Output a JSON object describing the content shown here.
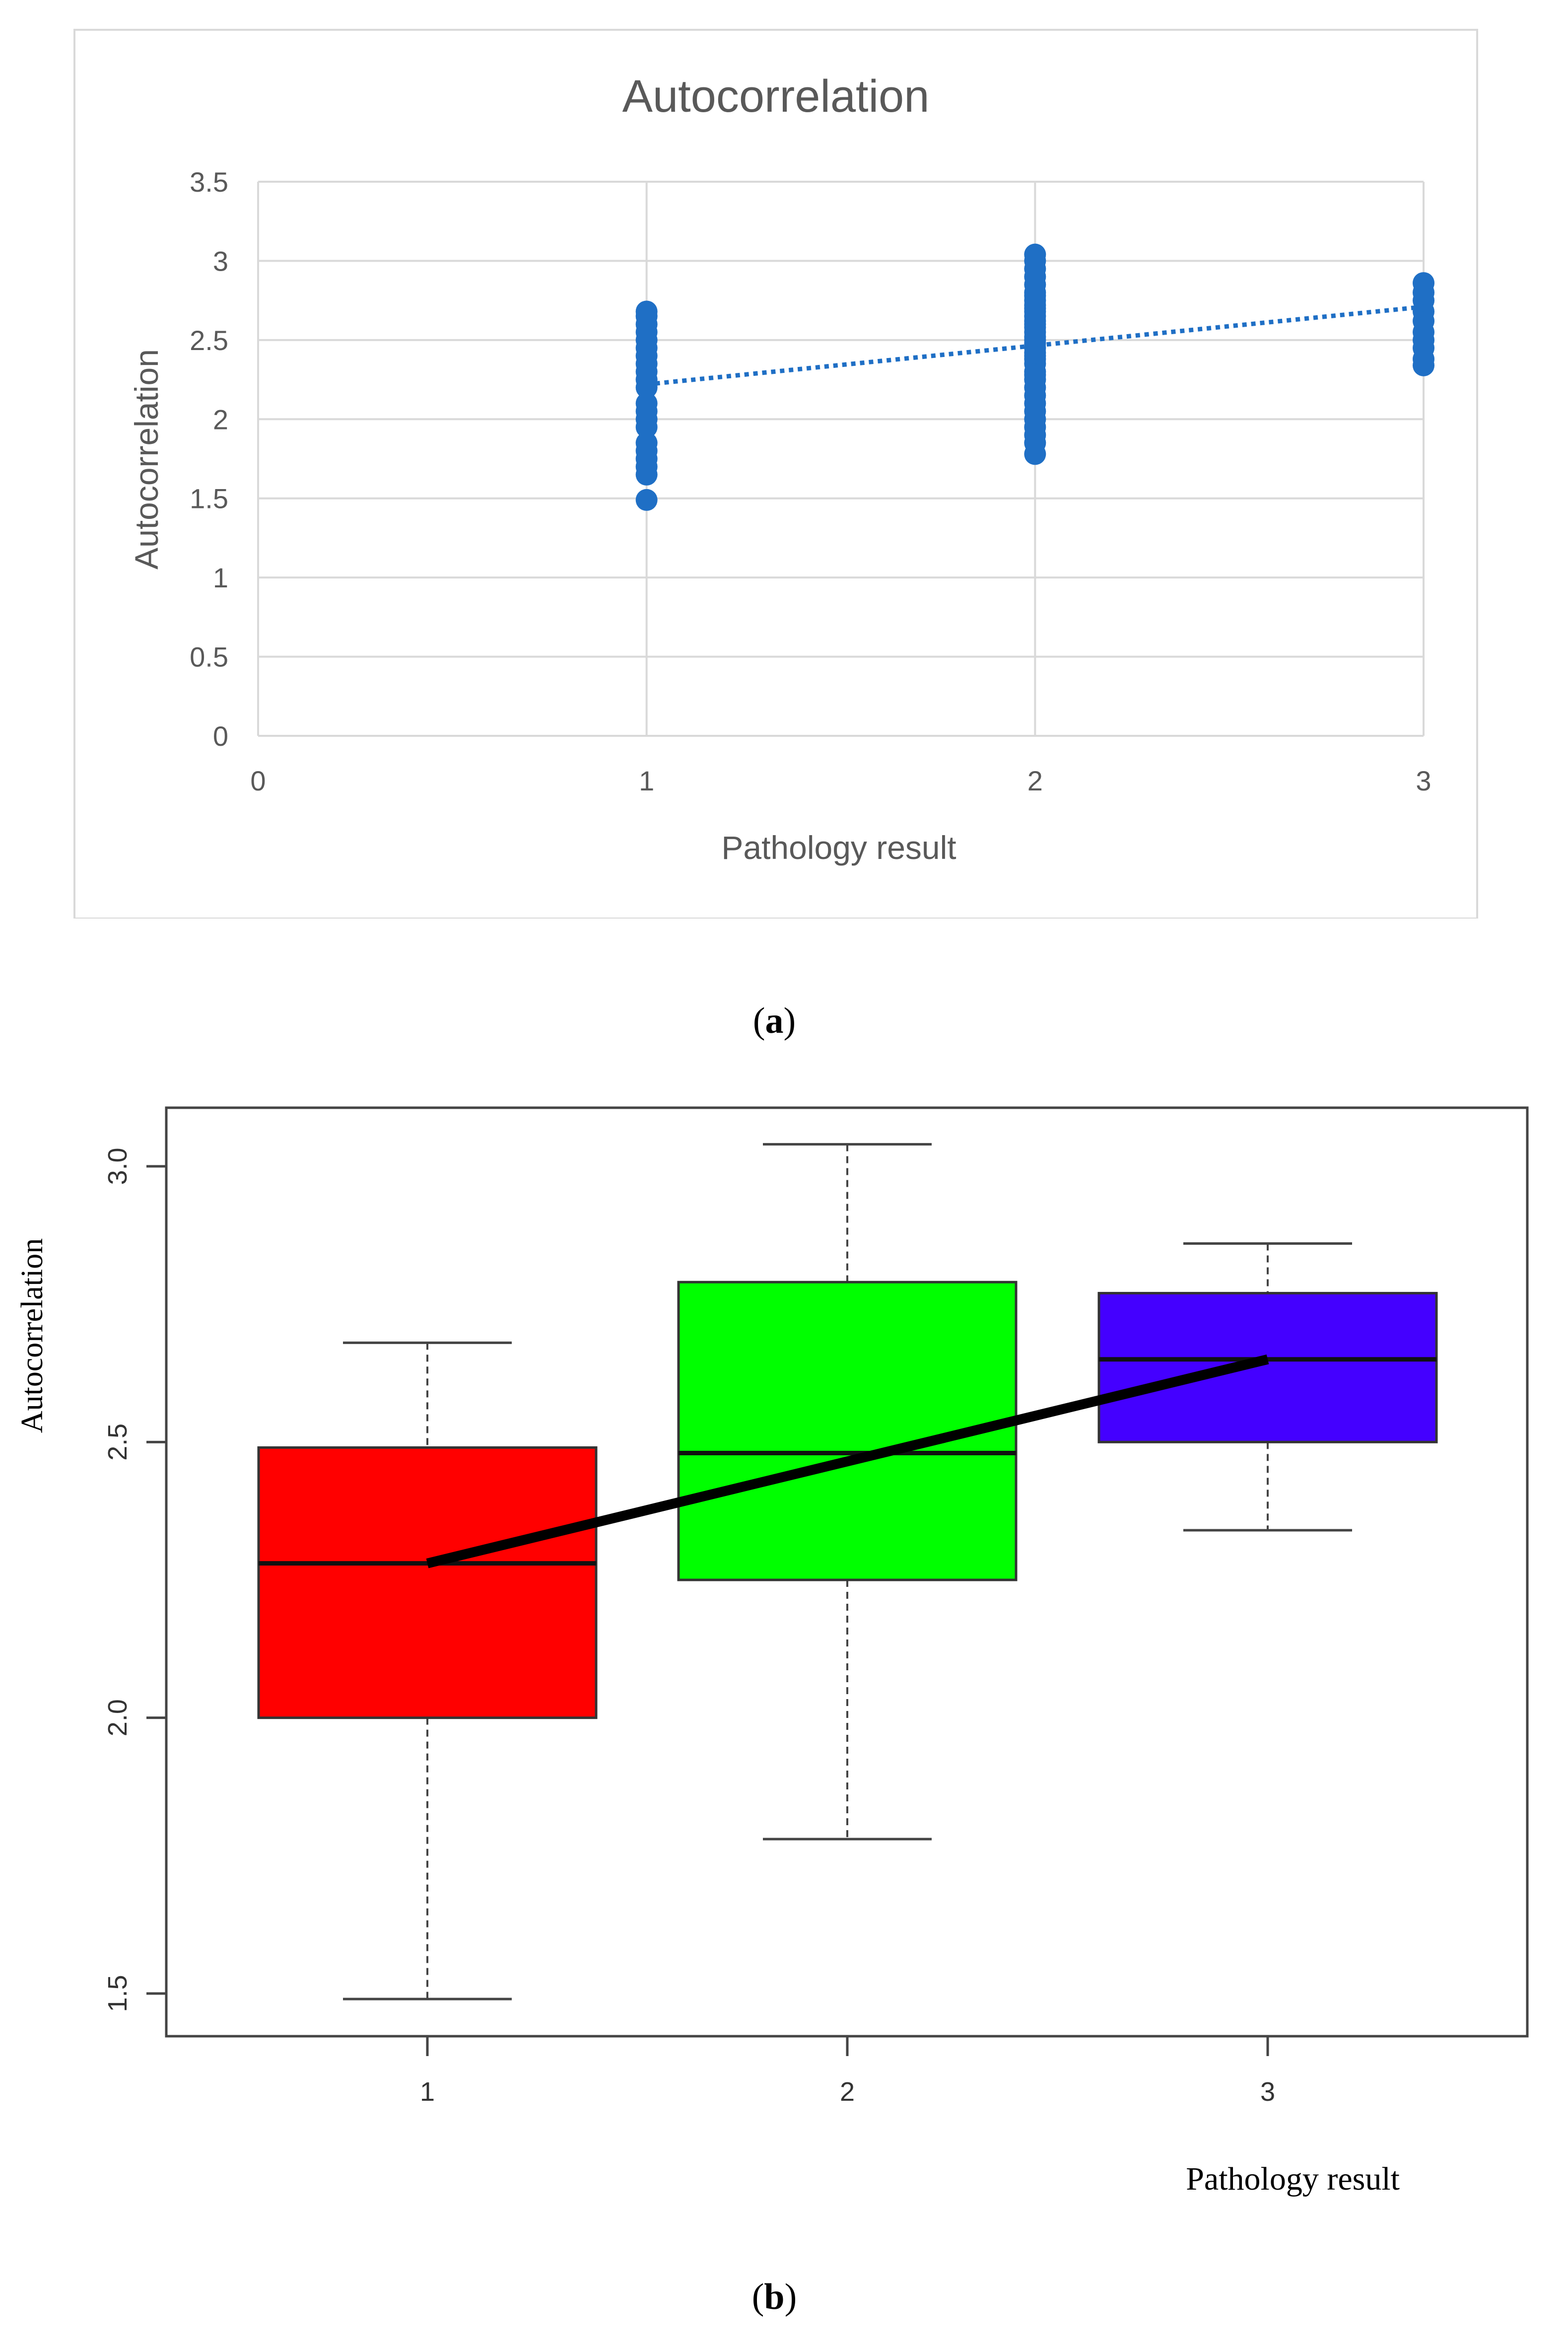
{
  "panels": {
    "a": {
      "caption_letter": "a"
    },
    "b": {
      "caption_letter": "b"
    }
  },
  "chart_data": [
    {
      "type": "scatter",
      "title": "Autocorrelation",
      "xlabel": "Pathology result",
      "ylabel": "Autocorrelation",
      "xlim": [
        0,
        3
      ],
      "ylim": [
        0,
        3.5
      ],
      "x_ticks": [
        0,
        1,
        2,
        3
      ],
      "x_tick_labels": [
        "0",
        "1",
        "2",
        "3"
      ],
      "y_ticks": [
        0,
        0.5,
        1,
        1.5,
        2,
        2.5,
        3,
        3.5
      ],
      "y_tick_labels": [
        "0",
        "0.5",
        "1",
        "1.5",
        "2",
        "2.5",
        "3",
        "3.5"
      ],
      "grid": true,
      "point_color": "#1f6fc5",
      "series": [
        {
          "x": [
            1,
            1,
            1,
            1,
            1,
            1,
            1,
            1,
            1,
            1,
            1,
            1,
            1,
            1,
            1,
            1,
            1,
            1,
            1,
            1,
            1,
            2,
            2,
            2,
            2,
            2,
            2,
            2,
            2,
            2,
            2,
            2,
            2,
            2,
            2,
            2,
            2,
            2,
            2,
            2,
            2,
            2,
            2,
            2,
            2,
            2,
            2,
            2,
            2,
            2,
            2,
            2,
            2,
            2,
            2,
            2,
            2,
            3,
            3,
            3,
            3,
            3,
            3,
            3,
            3,
            3,
            3
          ],
          "y": [
            1.49,
            1.65,
            1.7,
            1.75,
            1.8,
            1.85,
            1.95,
            2.0,
            2.05,
            2.1,
            2.2,
            2.25,
            2.3,
            2.35,
            2.4,
            2.45,
            2.5,
            2.55,
            2.6,
            2.65,
            2.68,
            1.78,
            1.85,
            1.9,
            1.95,
            2.0,
            2.05,
            2.1,
            2.15,
            2.2,
            2.25,
            2.3,
            2.35,
            2.4,
            2.45,
            2.5,
            2.55,
            2.6,
            2.65,
            2.7,
            2.75,
            2.8,
            2.85,
            2.9,
            2.95,
            3.0,
            3.04,
            2.48,
            2.62,
            2.38,
            2.72,
            2.28,
            2.58,
            2.42,
            2.68,
            2.52,
            2.78,
            2.34,
            2.38,
            2.45,
            2.5,
            2.55,
            2.62,
            2.68,
            2.75,
            2.8,
            2.86
          ]
        }
      ],
      "trendline": {
        "style": "dotted",
        "x": [
          1,
          3
        ],
        "y": [
          2.22,
          2.71
        ]
      }
    },
    {
      "type": "box",
      "xlabel": "Pathology result",
      "ylabel": "Autocorrelation",
      "ylim": [
        1.47,
        3.1
      ],
      "x_ticks": [
        1,
        2,
        3
      ],
      "x_tick_labels": [
        "1",
        "2",
        "3"
      ],
      "y_ticks": [
        1.5,
        2.0,
        2.5,
        3.0
      ],
      "y_tick_labels": [
        "1.5",
        "2.0",
        "2.5",
        "3.0"
      ],
      "categories": [
        "1",
        "2",
        "3"
      ],
      "boxes": [
        {
          "min": 1.49,
          "q1": 2.0,
          "median": 2.28,
          "q3": 2.49,
          "max": 2.68,
          "color": "#ff0000"
        },
        {
          "min": 1.78,
          "q1": 2.25,
          "median": 2.48,
          "q3": 2.79,
          "max": 3.04,
          "color": "#00ff00"
        },
        {
          "min": 2.34,
          "q1": 2.5,
          "median": 2.65,
          "q3": 2.77,
          "max": 2.86,
          "color": "#4400ff"
        }
      ],
      "median_line": {
        "x": [
          1,
          3
        ],
        "y": [
          2.28,
          2.65
        ],
        "color": "#000000"
      }
    }
  ]
}
